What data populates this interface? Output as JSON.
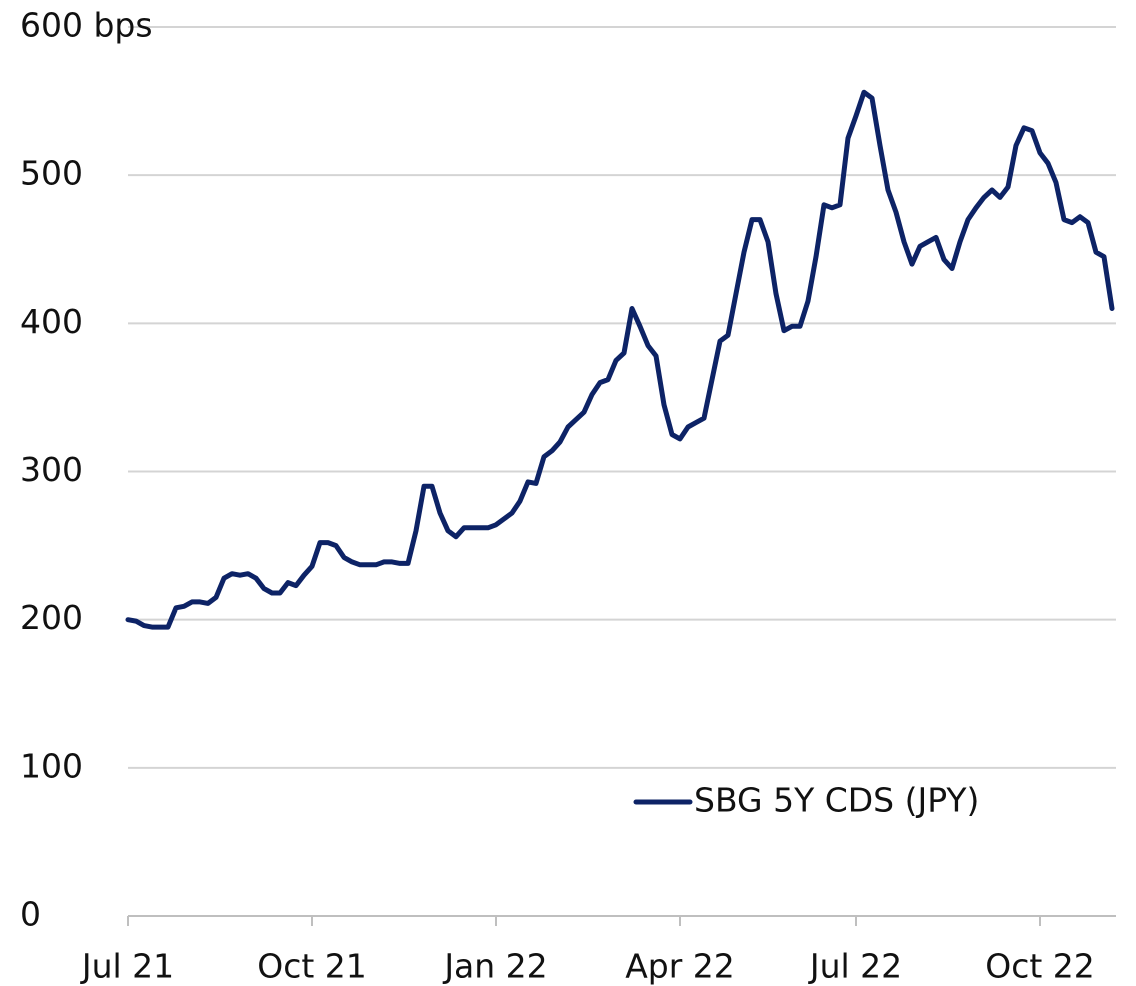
{
  "chart_data": {
    "type": "line",
    "categories": [
      "Jul 21",
      null,
      null,
      null,
      null,
      null,
      null,
      null,
      null,
      null,
      null,
      null,
      null,
      null,
      null,
      null,
      null,
      null,
      null,
      null,
      null,
      null,
      null,
      "Oct 21",
      null,
      null,
      null,
      null,
      null,
      null,
      null,
      null,
      null,
      null,
      null,
      null,
      null,
      null,
      null,
      null,
      null,
      null,
      null,
      null,
      null,
      null,
      "Jan 22",
      null,
      null,
      null,
      null,
      null,
      null,
      null,
      null,
      null,
      null,
      null,
      null,
      null,
      null,
      null,
      null,
      null,
      null,
      null,
      null,
      null,
      null,
      "Apr 22",
      null,
      null,
      null,
      null,
      null,
      null,
      null,
      null,
      null,
      null,
      null,
      null,
      null,
      null,
      null,
      null,
      null,
      null,
      null,
      null,
      null,
      "Jul 22",
      null,
      null,
      null,
      null,
      null,
      null,
      null,
      null,
      null,
      null,
      null,
      null,
      null,
      null,
      null,
      null,
      null,
      null,
      null,
      null,
      null,
      null,
      "Oct 22",
      null,
      null,
      null,
      null,
      null,
      null,
      null,
      null,
      null
    ],
    "series": [
      {
        "name": "SBG 5Y CDS (JPY)",
        "color": "#0d2366",
        "values": [
          200,
          199,
          196,
          195,
          195,
          195,
          208,
          209,
          212,
          212,
          211,
          215,
          228,
          231,
          230,
          231,
          228,
          221,
          218,
          218,
          225,
          223,
          230,
          236,
          252,
          252,
          250,
          242,
          239,
          237,
          237,
          237,
          239,
          239,
          238,
          238,
          260,
          290,
          290,
          272,
          260,
          256,
          262,
          262,
          262,
          262,
          264,
          268,
          272,
          280,
          293,
          292,
          310,
          314,
          320,
          330,
          335,
          340,
          352,
          360,
          362,
          375,
          380,
          410,
          398,
          385,
          378,
          345,
          325,
          322,
          330,
          333,
          336,
          362,
          388,
          392,
          420,
          448,
          470,
          470,
          455,
          420,
          395,
          398,
          398,
          415,
          445,
          480,
          478,
          480,
          525,
          540,
          556,
          552,
          520,
          490,
          475,
          455,
          440,
          452,
          455,
          458,
          443,
          437,
          455,
          470,
          478,
          485,
          490,
          485,
          492,
          520,
          532,
          530,
          515,
          508,
          495,
          470,
          468,
          472,
          468,
          448,
          445,
          410
        ]
      }
    ],
    "ylim": [
      0,
      600
    ],
    "yticks": [
      0,
      100,
      200,
      300,
      400,
      500,
      {
        "value": 600,
        "label": "600 bps"
      }
    ],
    "grid": true,
    "legend": "lower right"
  }
}
